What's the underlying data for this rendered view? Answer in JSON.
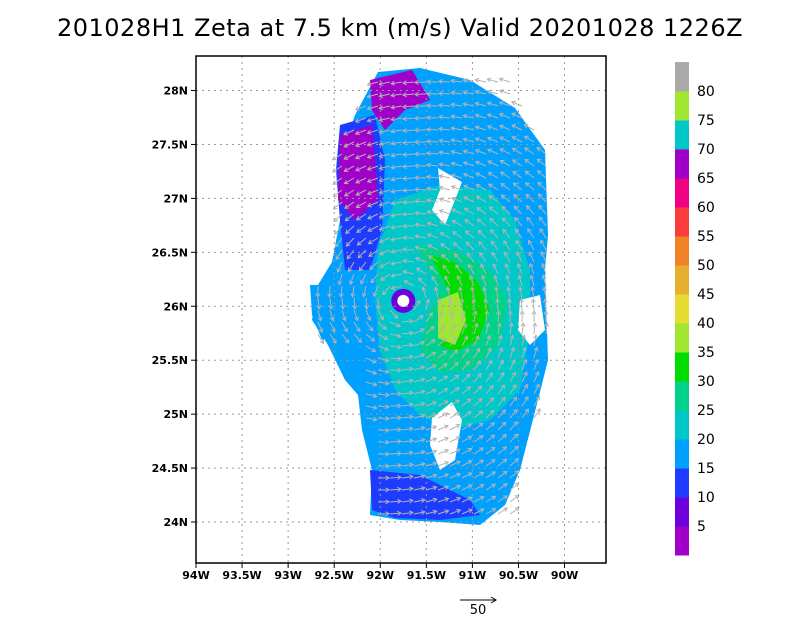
{
  "title": "201028H1  Zeta at 7.5 km (m/s) Valid 20201028  1226Z",
  "chart_data": {
    "type": "heatmap",
    "title": "201028H1  Zeta at 7.5 km (m/s) Valid 20201028  1226Z",
    "xlim": [
      -94.0,
      -89.55
    ],
    "ylim": [
      23.62,
      28.32
    ],
    "x_ticks": [
      -94,
      -93.5,
      -93,
      -92.5,
      -92,
      -91.5,
      -91,
      -90.5,
      -90
    ],
    "x_tick_labels": [
      "94W",
      "93.5W",
      "93W",
      "92.5W",
      "92W",
      "91.5W",
      "91W",
      "90.5W",
      "90W"
    ],
    "y_ticks": [
      24,
      24.5,
      25,
      25.5,
      26,
      26.5,
      27,
      27.5,
      28
    ],
    "y_tick_labels": [
      "24N",
      "24.5N",
      "25N",
      "25.5N",
      "26N",
      "26.5N",
      "27N",
      "27.5N",
      "28N"
    ],
    "grid": true,
    "vortex_center": {
      "lon": -91.75,
      "lat": 26.05
    },
    "colorbar": {
      "bounds": [
        0,
        5,
        10,
        15,
        20,
        25,
        30,
        35,
        40,
        45,
        50,
        55,
        60,
        65,
        70,
        75,
        80,
        85
      ],
      "labels": [
        "5",
        "10",
        "15",
        "20",
        "25",
        "30",
        "35",
        "40",
        "45",
        "50",
        "55",
        "60",
        "65",
        "70",
        "75",
        "80"
      ],
      "colors": [
        "#a000c8",
        "#6e00dc",
        "#1e3cff",
        "#00a0ff",
        "#00c8c8",
        "#00d28c",
        "#00dc00",
        "#a0e632",
        "#e6dc32",
        "#e6af2d",
        "#f08228",
        "#fa3c3c",
        "#f00082",
        "#a000c8",
        "#00c8c8",
        "#a0e632",
        "#aaaaaa"
      ]
    },
    "vector_scale": {
      "label": "50",
      "value": 50
    }
  }
}
